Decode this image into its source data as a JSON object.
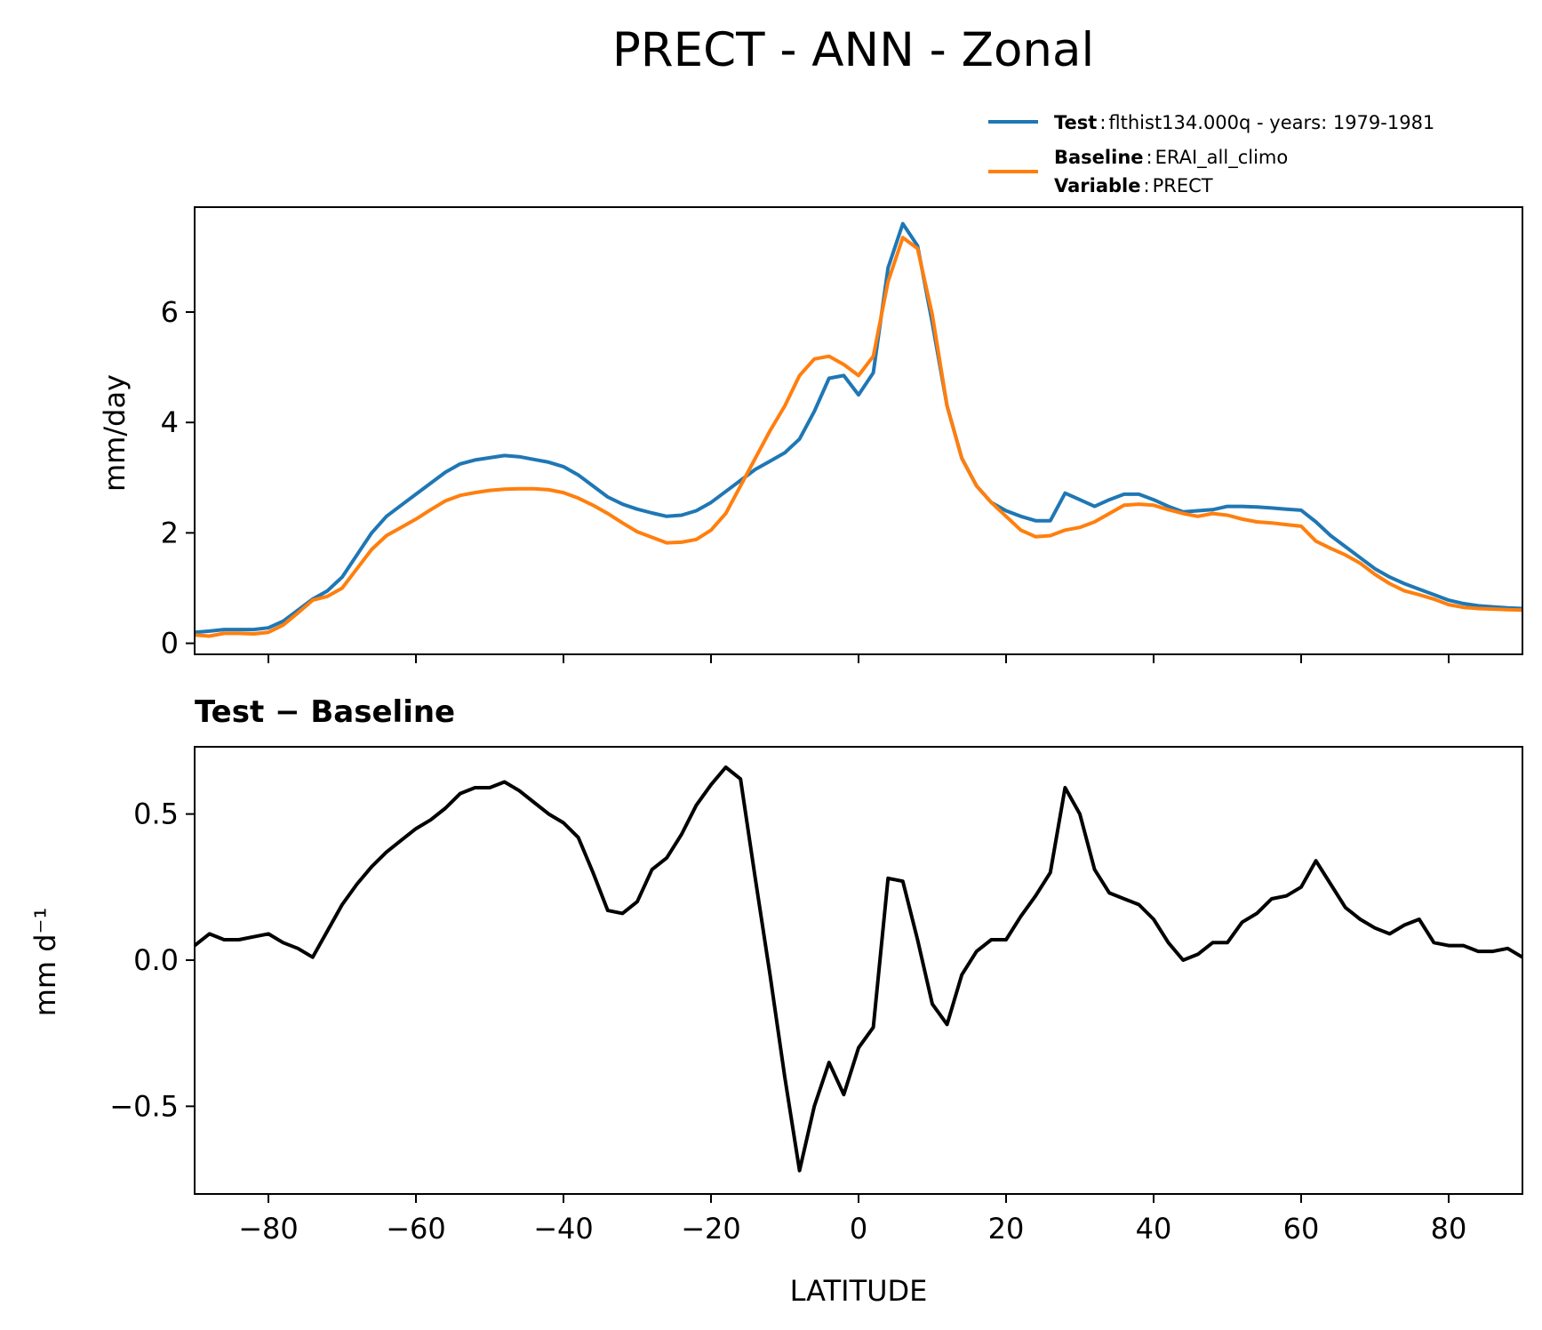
{
  "figure": {
    "title": "PRECT - ANN - Zonal"
  },
  "legend": {
    "test_key": "Test",
    "test_value": "flthist134.000q - years: 1979-1981",
    "baseline_key": "Baseline",
    "baseline_value": "ERAI_all_climo",
    "variable_key": "Variable",
    "variable_value": "PRECT",
    "sep": ":"
  },
  "colors": {
    "test": "#1f77b4",
    "baseline": "#ff7f0e",
    "diff": "#000000"
  },
  "chart_data": [
    {
      "type": "line",
      "ylabel": "mm/day",
      "xlim": [
        -90,
        90
      ],
      "ylim": [
        -0.2,
        7.9
      ],
      "yticks": [
        0,
        2,
        4,
        6
      ],
      "xticks": [
        -80,
        -60,
        -40,
        -20,
        0,
        20,
        40,
        60,
        80
      ],
      "legend_position": "above-right",
      "series": [
        {
          "name": "Test",
          "x": [
            -90,
            -88,
            -86,
            -84,
            -82,
            -80,
            -78,
            -76,
            -74,
            -72,
            -70,
            -68,
            -66,
            -64,
            -62,
            -60,
            -58,
            -56,
            -54,
            -52,
            -50,
            -48,
            -46,
            -44,
            -42,
            -40,
            -38,
            -36,
            -34,
            -32,
            -30,
            -28,
            -26,
            -24,
            -22,
            -20,
            -18,
            -16,
            -14,
            -12,
            -10,
            -8,
            -6,
            -4,
            -2,
            0,
            2,
            4,
            6,
            8,
            10,
            12,
            14,
            16,
            18,
            20,
            22,
            24,
            26,
            28,
            30,
            32,
            34,
            36,
            38,
            40,
            42,
            44,
            46,
            48,
            50,
            52,
            54,
            56,
            58,
            60,
            62,
            64,
            66,
            68,
            70,
            72,
            74,
            76,
            78,
            80,
            82,
            84,
            86,
            88,
            90
          ],
          "values": [
            0.2,
            0.22,
            0.25,
            0.25,
            0.25,
            0.28,
            0.4,
            0.6,
            0.8,
            0.95,
            1.2,
            1.6,
            2.0,
            2.3,
            2.5,
            2.7,
            2.9,
            3.1,
            3.25,
            3.32,
            3.36,
            3.4,
            3.38,
            3.33,
            3.28,
            3.2,
            3.05,
            2.85,
            2.65,
            2.52,
            2.43,
            2.36,
            2.3,
            2.32,
            2.4,
            2.55,
            2.75,
            2.95,
            3.15,
            3.3,
            3.45,
            3.7,
            4.2,
            4.8,
            4.85,
            4.5,
            4.9,
            6.8,
            7.6,
            7.2,
            5.8,
            4.3,
            3.35,
            2.85,
            2.55,
            2.4,
            2.3,
            2.22,
            2.22,
            2.72,
            2.6,
            2.48,
            2.6,
            2.7,
            2.7,
            2.6,
            2.48,
            2.38,
            2.4,
            2.42,
            2.48,
            2.48,
            2.47,
            2.45,
            2.43,
            2.41,
            2.2,
            1.95,
            1.75,
            1.55,
            1.35,
            1.2,
            1.08,
            0.98,
            0.88,
            0.78,
            0.72,
            0.68,
            0.66,
            0.64,
            0.63
          ]
        },
        {
          "name": "Baseline",
          "x": [
            -90,
            -88,
            -86,
            -84,
            -82,
            -80,
            -78,
            -76,
            -74,
            -72,
            -70,
            -68,
            -66,
            -64,
            -62,
            -60,
            -58,
            -56,
            -54,
            -52,
            -50,
            -48,
            -46,
            -44,
            -42,
            -40,
            -38,
            -36,
            -34,
            -32,
            -30,
            -28,
            -26,
            -24,
            -22,
            -20,
            -18,
            -16,
            -14,
            -12,
            -10,
            -8,
            -6,
            -4,
            -2,
            0,
            2,
            4,
            6,
            8,
            10,
            12,
            14,
            16,
            18,
            20,
            22,
            24,
            26,
            28,
            30,
            32,
            34,
            36,
            38,
            40,
            42,
            44,
            46,
            48,
            50,
            52,
            54,
            56,
            58,
            60,
            62,
            64,
            66,
            68,
            70,
            72,
            74,
            76,
            78,
            80,
            82,
            84,
            86,
            88,
            90
          ],
          "values": [
            0.15,
            0.13,
            0.18,
            0.18,
            0.17,
            0.2,
            0.33,
            0.55,
            0.78,
            0.85,
            1.0,
            1.35,
            1.7,
            1.95,
            2.1,
            2.25,
            2.42,
            2.58,
            2.68,
            2.73,
            2.77,
            2.79,
            2.8,
            2.8,
            2.78,
            2.73,
            2.63,
            2.5,
            2.35,
            2.18,
            2.02,
            1.92,
            1.82,
            1.83,
            1.88,
            2.05,
            2.35,
            2.85,
            3.35,
            3.85,
            4.3,
            4.85,
            5.15,
            5.2,
            5.05,
            4.85,
            5.2,
            6.55,
            7.35,
            7.15,
            5.95,
            4.3,
            3.35,
            2.85,
            2.55,
            2.3,
            2.05,
            1.93,
            1.95,
            2.05,
            2.1,
            2.2,
            2.35,
            2.5,
            2.52,
            2.5,
            2.42,
            2.35,
            2.3,
            2.35,
            2.32,
            2.25,
            2.2,
            2.18,
            2.15,
            2.12,
            1.85,
            1.72,
            1.6,
            1.45,
            1.25,
            1.08,
            0.95,
            0.88,
            0.8,
            0.7,
            0.65,
            0.63,
            0.62,
            0.61,
            0.6
          ]
        }
      ]
    },
    {
      "type": "line",
      "title": "Test − Baseline",
      "xlabel": "LATITUDE",
      "ylabel": "mm d⁻¹",
      "xlim": [
        -90,
        90
      ],
      "ylim": [
        -0.8,
        0.73
      ],
      "yticks": [
        0.5,
        0.0,
        -0.5
      ],
      "ytick_labels": [
        "0.5",
        "0.0",
        "−0.5"
      ],
      "xticks": [
        -80,
        -60,
        -40,
        -20,
        0,
        20,
        40,
        60,
        80
      ],
      "xtick_labels": [
        "−80",
        "−60",
        "−40",
        "−20",
        "0",
        "20",
        "40",
        "60",
        "80"
      ],
      "series": [
        {
          "x": [
            -90,
            -88,
            -86,
            -84,
            -82,
            -80,
            -78,
            -76,
            -74,
            -72,
            -70,
            -68,
            -66,
            -64,
            -62,
            -60,
            -58,
            -56,
            -54,
            -52,
            -50,
            -48,
            -46,
            -44,
            -42,
            -40,
            -38,
            -36,
            -34,
            -32,
            -30,
            -28,
            -26,
            -24,
            -22,
            -20,
            -18,
            -16,
            -14,
            -12,
            -10,
            -8,
            -6,
            -4,
            -2,
            0,
            2,
            4,
            6,
            8,
            10,
            12,
            14,
            16,
            18,
            20,
            22,
            24,
            26,
            28,
            30,
            32,
            34,
            36,
            38,
            40,
            42,
            44,
            46,
            48,
            50,
            52,
            54,
            56,
            58,
            60,
            62,
            64,
            66,
            68,
            70,
            72,
            74,
            76,
            78,
            80,
            82,
            84,
            86,
            88,
            90
          ],
          "values": [
            0.05,
            0.09,
            0.07,
            0.07,
            0.08,
            0.09,
            0.06,
            0.04,
            0.01,
            0.1,
            0.19,
            0.26,
            0.32,
            0.37,
            0.41,
            0.45,
            0.48,
            0.52,
            0.57,
            0.59,
            0.59,
            0.61,
            0.58,
            0.54,
            0.5,
            0.47,
            0.42,
            0.3,
            0.17,
            0.16,
            0.2,
            0.31,
            0.35,
            0.43,
            0.53,
            0.6,
            0.66,
            0.62,
            0.28,
            -0.05,
            -0.4,
            -0.72,
            -0.5,
            -0.35,
            -0.46,
            -0.3,
            -0.23,
            0.28,
            0.27,
            0.07,
            -0.15,
            -0.22,
            -0.05,
            0.03,
            0.07,
            0.07,
            0.15,
            0.22,
            0.3,
            0.59,
            0.5,
            0.31,
            0.23,
            0.21,
            0.19,
            0.14,
            0.06,
            0.0,
            0.02,
            0.06,
            0.06,
            0.13,
            0.16,
            0.21,
            0.22,
            0.25,
            0.34,
            0.26,
            0.18,
            0.14,
            0.11,
            0.09,
            0.12,
            0.14,
            0.06,
            0.05,
            0.05,
            0.03,
            0.03,
            0.04,
            0.01
          ]
        }
      ]
    }
  ]
}
